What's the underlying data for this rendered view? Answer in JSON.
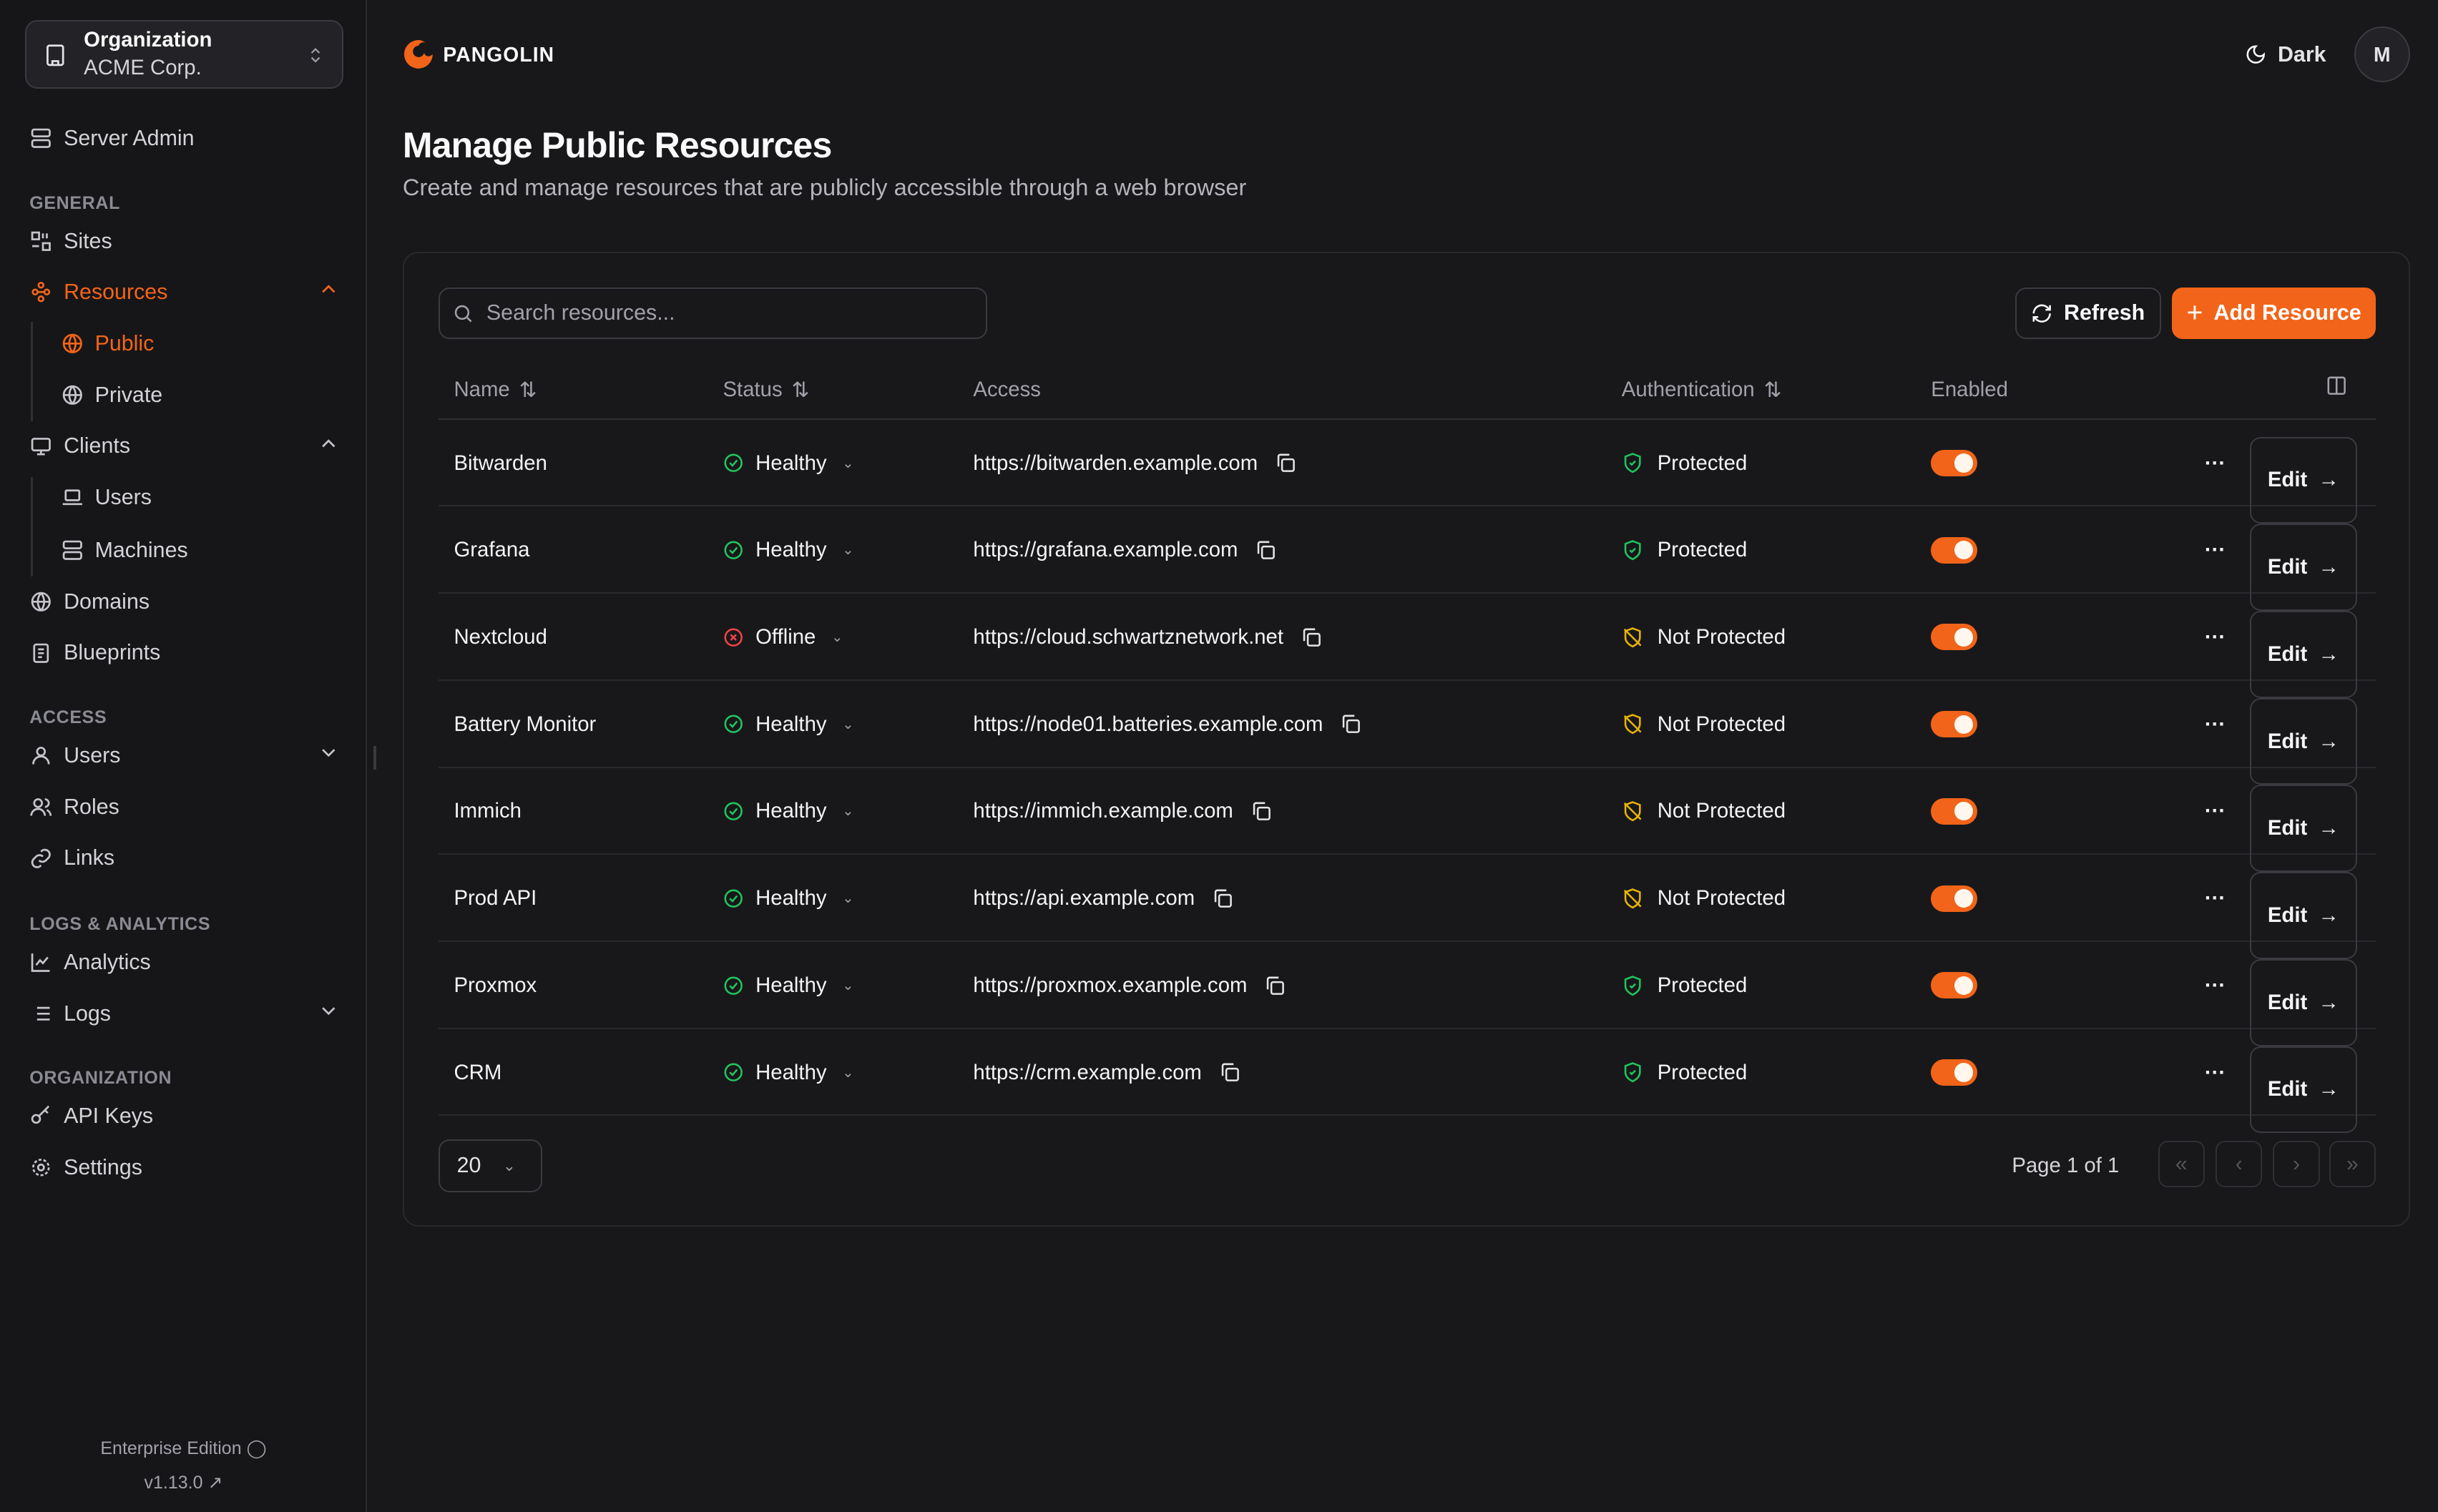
{
  "colors": {
    "accent": "#f26419",
    "healthy": "#22c55e",
    "offline": "#ef4444",
    "not_protected": "#eab308"
  },
  "sidebar": {
    "org_label": "Organization",
    "org_name": "ACME Corp.",
    "server_admin": "Server Admin",
    "sections": {
      "general": "GENERAL",
      "access": "ACCESS",
      "logs": "LOGS & ANALYTICS",
      "organization": "ORGANIZATION"
    },
    "items": {
      "sites": "Sites",
      "resources": "Resources",
      "public": "Public",
      "private": "Private",
      "clients": "Clients",
      "users_client": "Users",
      "machines": "Machines",
      "domains": "Domains",
      "blueprints": "Blueprints",
      "users": "Users",
      "roles": "Roles",
      "links": "Links",
      "analytics": "Analytics",
      "logs": "Logs",
      "api_keys": "API Keys",
      "settings": "Settings"
    },
    "edition": "Enterprise Edition",
    "version": "v1.13.0"
  },
  "header": {
    "brand": "PANGOLIN",
    "theme": "Dark",
    "avatar": "M"
  },
  "page": {
    "title": "Manage Public Resources",
    "subtitle": "Create and manage resources that are publicly accessible through a web browser"
  },
  "toolbar": {
    "search_placeholder": "Search resources...",
    "refresh": "Refresh",
    "add": "Add Resource"
  },
  "table": {
    "columns": {
      "name": "Name",
      "status": "Status",
      "access": "Access",
      "auth": "Authentication",
      "enabled": "Enabled"
    },
    "edit_label": "Edit",
    "rows": [
      {
        "name": "Bitwarden",
        "status": "Healthy",
        "access": "https://bitwarden.example.com",
        "auth": "Protected",
        "enabled": true
      },
      {
        "name": "Grafana",
        "status": "Healthy",
        "access": "https://grafana.example.com",
        "auth": "Protected",
        "enabled": true
      },
      {
        "name": "Nextcloud",
        "status": "Offline",
        "access": "https://cloud.schwartznetwork.net",
        "auth": "Not Protected",
        "enabled": true
      },
      {
        "name": "Battery Monitor",
        "status": "Healthy",
        "access": "https://node01.batteries.example.com",
        "auth": "Not Protected",
        "enabled": true
      },
      {
        "name": "Immich",
        "status": "Healthy",
        "access": "https://immich.example.com",
        "auth": "Not Protected",
        "enabled": true
      },
      {
        "name": "Prod API",
        "status": "Healthy",
        "access": "https://api.example.com",
        "auth": "Not Protected",
        "enabled": true
      },
      {
        "name": "Proxmox",
        "status": "Healthy",
        "access": "https://proxmox.example.com",
        "auth": "Protected",
        "enabled": true
      },
      {
        "name": "CRM",
        "status": "Healthy",
        "access": "https://crm.example.com",
        "auth": "Protected",
        "enabled": true
      }
    ]
  },
  "pagination": {
    "page_size": "20",
    "page_text": "Page 1 of 1"
  }
}
